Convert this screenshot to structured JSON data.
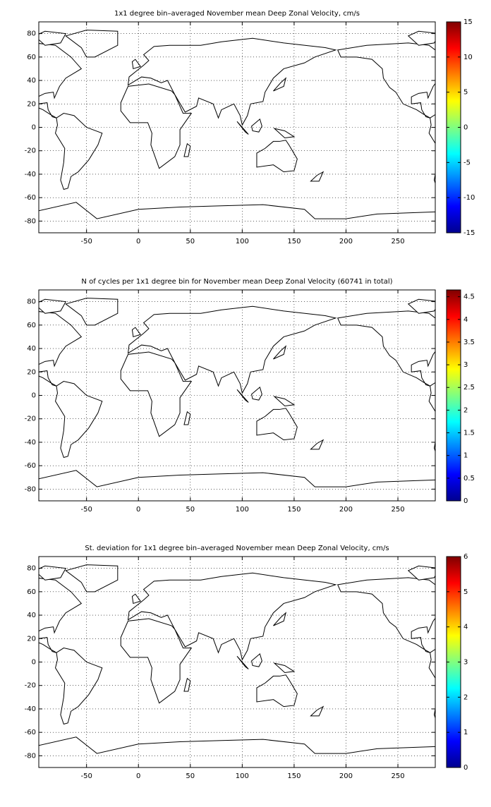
{
  "chart_data": [
    {
      "type": "heatmap",
      "title": "1x1 degree bin–averaged November mean Deep Zonal Velocity, cm/s",
      "xlim": [
        -96,
        286
      ],
      "ylim": [
        -90,
        90
      ],
      "xticks": [
        -50,
        0,
        50,
        100,
        150,
        200,
        250
      ],
      "yticks": [
        -80,
        -60,
        -40,
        -20,
        0,
        20,
        40,
        60,
        80
      ],
      "grid": true,
      "colorbar": {
        "lim": [
          -15,
          15
        ],
        "ticks": [
          -15,
          -10,
          -5,
          0,
          5,
          10,
          15
        ],
        "colormap": "jet"
      }
    },
    {
      "type": "heatmap",
      "title": "N of cycles per 1x1 degree bin for November mean Deep Zonal Velocity (60741 in total)",
      "xlim": [
        -96,
        286
      ],
      "ylim": [
        -90,
        90
      ],
      "xticks": [
        -50,
        0,
        50,
        100,
        150,
        200,
        250
      ],
      "yticks": [
        -80,
        -60,
        -40,
        -20,
        0,
        20,
        40,
        60,
        80
      ],
      "grid": true,
      "colorbar": {
        "lim": [
          0,
          4.65
        ],
        "ticks": [
          0,
          0.5,
          1,
          1.5,
          2,
          2.5,
          3,
          3.5,
          4,
          4.5
        ],
        "colormap": "jet"
      }
    },
    {
      "type": "heatmap",
      "title": "St. deviation for 1x1 degree bin–averaged November mean Deep Zonal Velocity, cm/s",
      "xlim": [
        -96,
        286
      ],
      "ylim": [
        -90,
        90
      ],
      "xticks": [
        -50,
        0,
        50,
        100,
        150,
        200,
        250
      ],
      "yticks": [
        -80,
        -60,
        -40,
        -20,
        0,
        20,
        40,
        60,
        80
      ],
      "grid": true,
      "colorbar": {
        "lim": [
          0,
          6
        ],
        "ticks": [
          0,
          1,
          2,
          3,
          4,
          5,
          6
        ],
        "colormap": "jet"
      }
    }
  ]
}
